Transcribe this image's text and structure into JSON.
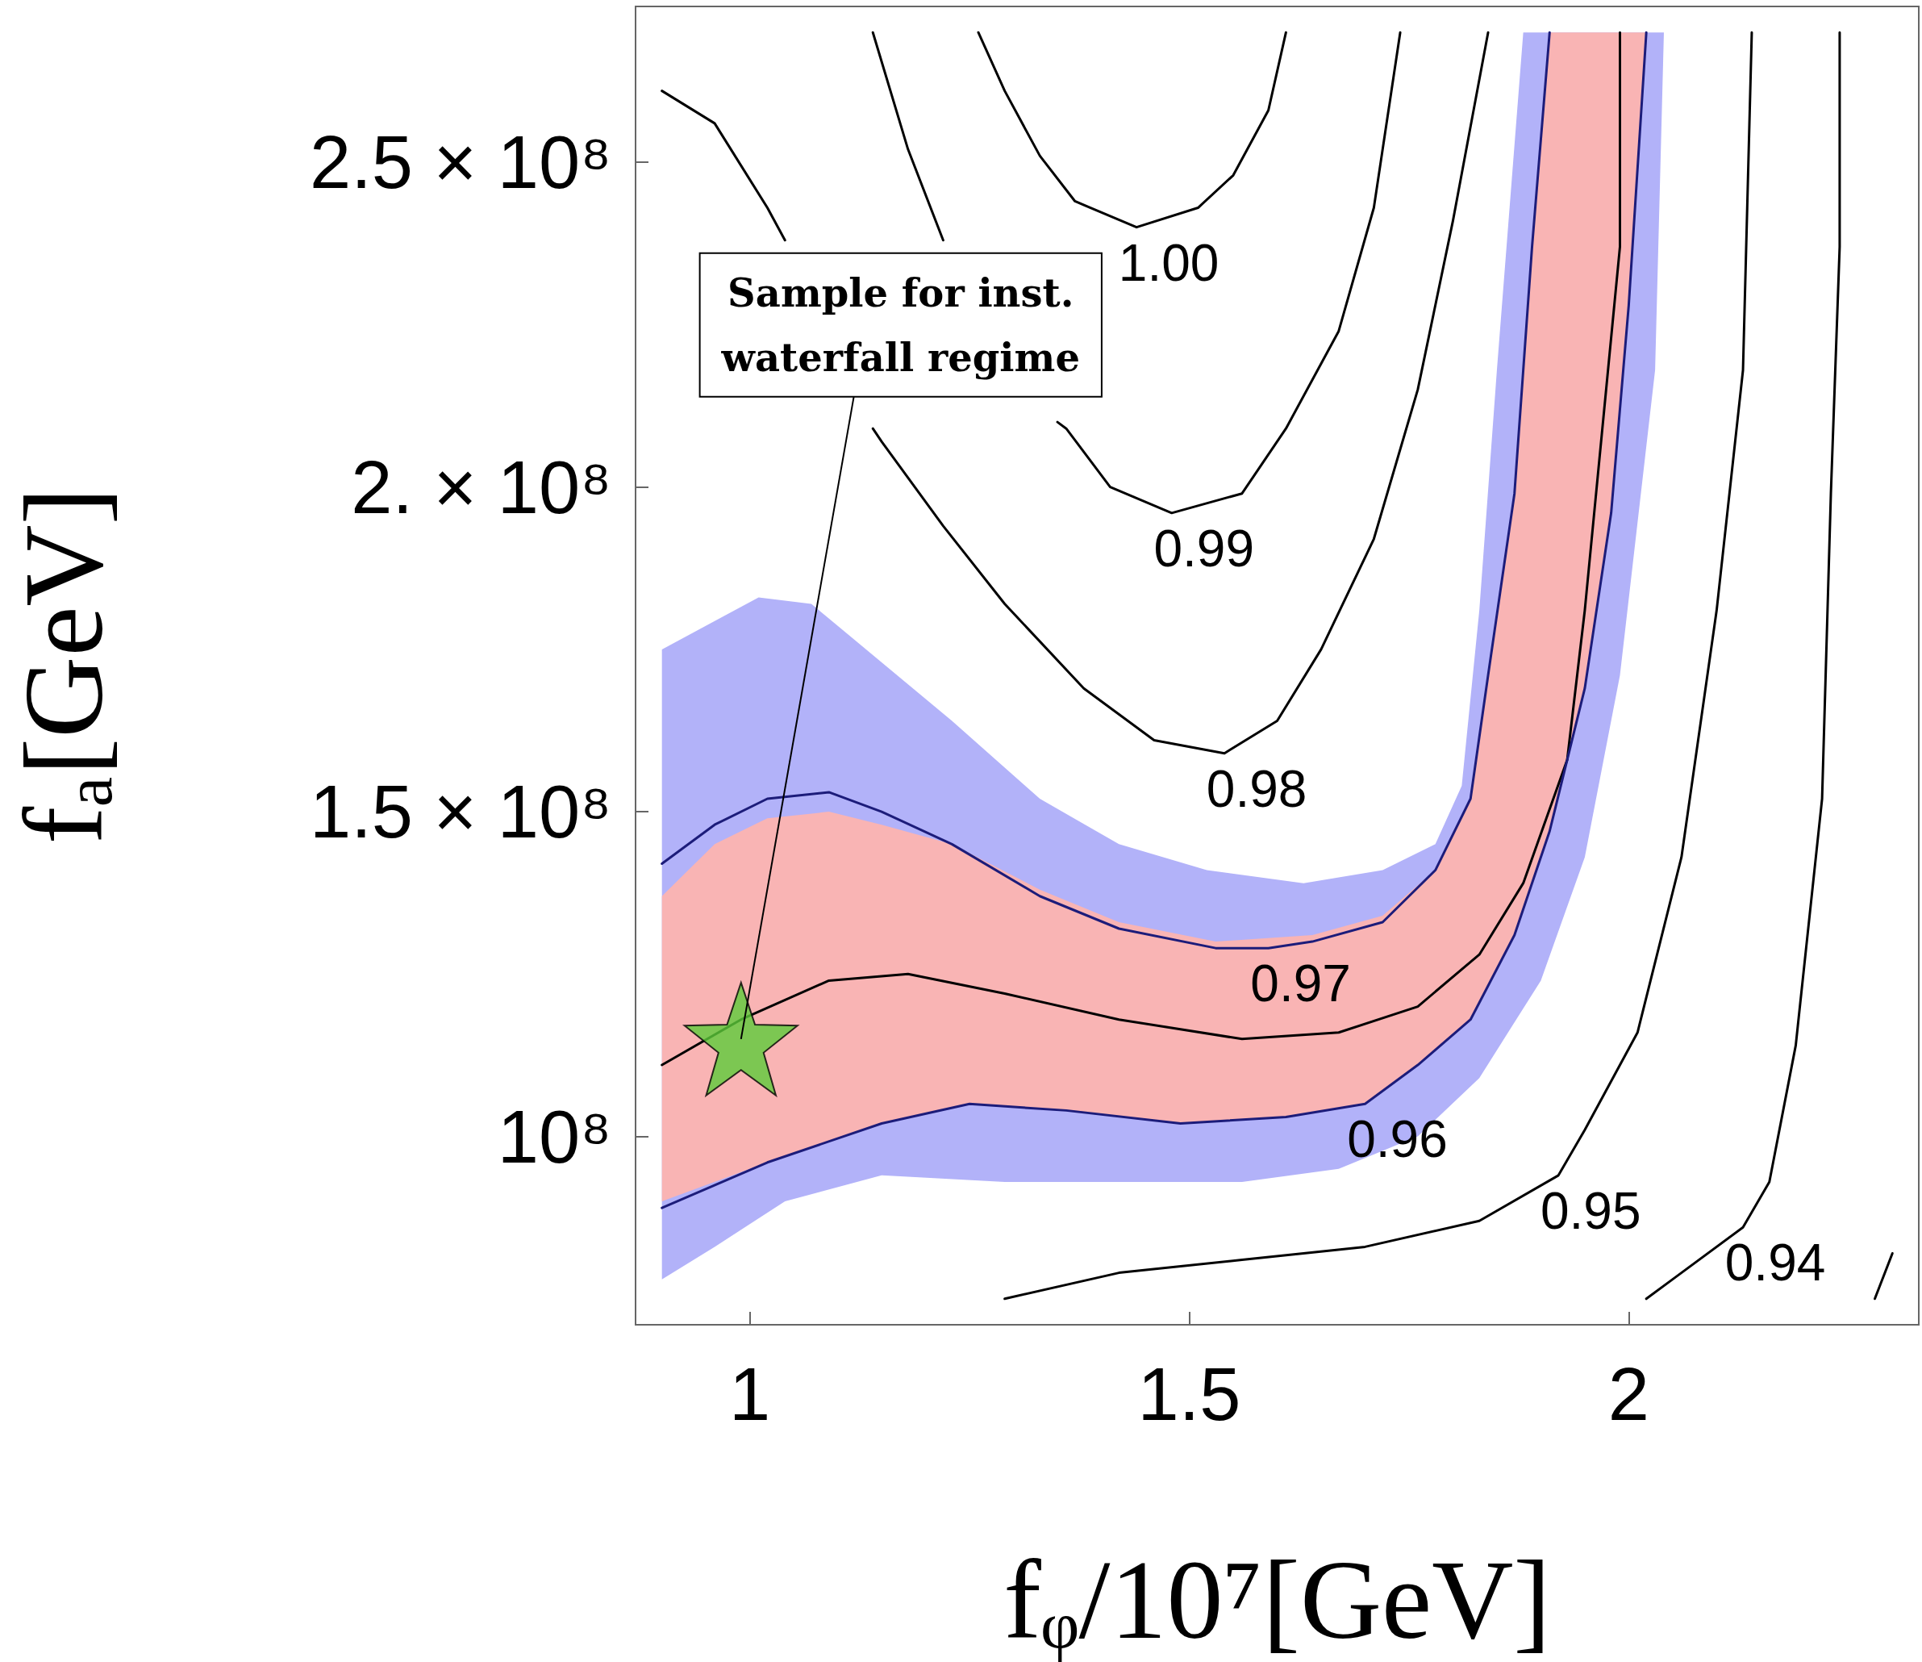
{
  "chart_data": {
    "type": "line",
    "xlabel": "fᵩ/10⁷[GeV]",
    "ylabel": "fₐ[GeV]",
    "xlim": [
      0.87,
      2.33
    ],
    "ylim": [
      71000000,
      274000000
    ],
    "xticks": [
      1,
      1.5,
      2
    ],
    "yticks": [
      {
        "value": 100000000,
        "label": "10⁸"
      },
      {
        "value": 150000000,
        "label": "1.5 × 10⁸"
      },
      {
        "value": 200000000,
        "label": "2. × 10⁸"
      },
      {
        "value": 250000000,
        "label": "2.5 × 10⁸"
      }
    ],
    "marker": "none",
    "series": [
      {
        "type": "area",
        "color": "#b2b2f9",
        "x": [
          0.9,
          1.01,
          1.07,
          1.15,
          1.23,
          1.33,
          1.42,
          1.52,
          1.63,
          1.72,
          1.78,
          1.81,
          1.83,
          1.85,
          1.88,
          2.04,
          2.03,
          1.99,
          1.95,
          1.9,
          1.83,
          1.76,
          1.67,
          1.56,
          1.42,
          1.29,
          1.15,
          1.04,
          0.96,
          0.9
        ],
        "values": [
          175000000,
          183000000,
          182000000,
          173000000,
          164000000,
          152000000,
          145000000,
          141000000,
          139000000,
          141000000,
          145000000,
          154000000,
          181000000,
          218000000,
          270000000,
          270000000,
          218000000,
          171000000,
          143000000,
          124000000,
          109000000,
          100000000,
          95000000,
          93000000,
          93000000,
          93000000,
          94000000,
          90000000,
          83000000,
          78000000
        ]
      },
      {
        "type": "area",
        "color": "#f9b4b4",
        "x": [
          0.9,
          0.96,
          1.02,
          1.09,
          1.15,
          1.23,
          1.33,
          1.42,
          1.53,
          1.64,
          1.72,
          1.78,
          1.82,
          1.84,
          1.87,
          1.89,
          1.91,
          2.02,
          2.0,
          1.98,
          1.95,
          1.91,
          1.87,
          1.82,
          1.76,
          1.7,
          1.61,
          1.49,
          1.36,
          1.25,
          1.15,
          1.02,
          0.9
        ],
        "values": [
          137000000,
          145000000,
          149000000,
          150000000,
          148000000,
          145000000,
          138000000,
          133000000,
          130000000,
          131000000,
          134000000,
          141000000,
          152000000,
          171000000,
          199000000,
          237000000,
          270000000,
          270000000,
          228000000,
          196000000,
          169000000,
          147000000,
          131000000,
          118000000,
          111000000,
          105000000,
          103000000,
          102000000,
          104000000,
          105000000,
          102000000,
          96000000,
          90000000
        ]
      },
      {
        "color": "#1c1c7a",
        "x": [
          0.9,
          0.96,
          1.02,
          1.09,
          1.15,
          1.23,
          1.33,
          1.42,
          1.53,
          1.59,
          1.64,
          1.72,
          1.78,
          1.82,
          1.84,
          1.87,
          1.89,
          1.91
        ],
        "values": [
          142000000,
          148000000,
          152000000,
          153000000,
          150000000,
          145000000,
          137000000,
          132000000,
          129000000,
          129000000,
          130000000,
          133000000,
          141000000,
          152000000,
          171000000,
          199000000,
          237000000,
          270000000
        ]
      },
      {
        "color": "#000000",
        "x": [
          0.9,
          0.99,
          1.09,
          1.18,
          1.29,
          1.42,
          1.56,
          1.67,
          1.76,
          1.83,
          1.88,
          1.93,
          1.95,
          1.97,
          1.99,
          1.99
        ],
        "values": [
          111000000,
          118000000,
          124000000,
          125000000,
          122000000,
          118000000,
          115000000,
          116000000,
          120000000,
          128000000,
          139000000,
          158000000,
          181000000,
          209000000,
          237000000,
          270000000
        ]
      },
      {
        "color": "#1c1c7a",
        "x": [
          0.9,
          1.02,
          1.15,
          1.25,
          1.36,
          1.49,
          1.61,
          1.7,
          1.76,
          1.82,
          1.87,
          1.91,
          1.95,
          1.98,
          2.0,
          2.02
        ],
        "values": [
          89000000,
          96000000,
          102000000,
          105000000,
          104000000,
          102000000,
          103000000,
          105000000,
          111000000,
          118000000,
          131000000,
          147000000,
          169000000,
          196000000,
          228000000,
          270000000
        ]
      },
      {
        "color": "#000000",
        "x": [
          1.26,
          1.29,
          1.33,
          1.37,
          1.44,
          1.51,
          1.55,
          1.59,
          1.61
        ],
        "values": [
          270000000,
          261000000,
          251000000,
          244000000,
          240000000,
          243000000,
          248000000,
          258000000,
          270000000
        ]
      },
      {
        "color": "#000000",
        "x": [
          1.14,
          1.18,
          1.22,
          1.23,
          1.29,
          1.35,
          1.36,
          1.41,
          1.48,
          1.56,
          1.61,
          1.67,
          1.71,
          1.74
        ],
        "values": [
          270000000,
          252000000,
          238000000,
          null,
          null,
          210000000,
          209000000,
          200000000,
          196000000,
          199000000,
          209000000,
          224000000,
          243000000,
          270000000
        ]
      },
      {
        "color": "#000000",
        "x": [
          0.9,
          0.96,
          1.02,
          1.04,
          1.07,
          1.14,
          1.15,
          1.22,
          1.29,
          1.38,
          1.46,
          1.54,
          1.6,
          1.65,
          1.71,
          1.76,
          1.8,
          1.84
        ],
        "values": [
          261000000,
          256000000,
          243000000,
          238000000,
          null,
          209000000,
          207000000,
          194000000,
          182000000,
          169000000,
          161000000,
          159000000,
          164000000,
          175000000,
          192000000,
          215000000,
          241000000,
          270000000
        ]
      },
      {
        "color": "#000000",
        "x": [
          1.29,
          1.42,
          1.56,
          1.7,
          1.83,
          1.92,
          1.95,
          2.01,
          2.06,
          2.1,
          2.13,
          2.14
        ],
        "values": [
          75000000,
          79000000,
          81000000,
          83000000,
          87000000,
          94000000,
          101000000,
          116000000,
          143000000,
          181000000,
          218000000,
          270000000
        ]
      },
      {
        "color": "#000000",
        "x": [
          2.02,
          2.05,
          2.13,
          2.16,
          2.19,
          2.22,
          2.23,
          2.24,
          2.24
        ],
        "values": [
          75000000,
          78000000,
          86000000,
          93000000,
          114000000,
          152000000,
          199000000,
          237000000,
          270000000
        ]
      },
      {
        "color": "#000000",
        "x": [
          2.28,
          2.3
        ],
        "values": [
          75000000,
          82000000
        ]
      },
      {
        "type": "scatter",
        "marker": "star",
        "color": "#5ccc3a",
        "x": [
          0.99
        ],
        "values": [
          115000000
        ]
      }
    ],
    "annotations": [
      {
        "text": "1.00",
        "x": 1.44,
        "y": 240000000
      },
      {
        "text": "0.99",
        "x": 1.48,
        "y": 196000000
      },
      {
        "text": "0.98",
        "x": 1.54,
        "y": 159000000
      },
      {
        "text": "0.97",
        "x": 1.59,
        "y": 129000000
      },
      {
        "text": "0.96",
        "x": 1.7,
        "y": 105000000
      },
      {
        "text": "0.95",
        "x": 1.92,
        "y": 94000000
      },
      {
        "text": "0.94",
        "x": 2.13,
        "y": 86000000
      },
      {
        "text": "Sample for inst.\nwaterfall regime",
        "x": 0.99,
        "y": 115000000
      }
    ]
  }
}
